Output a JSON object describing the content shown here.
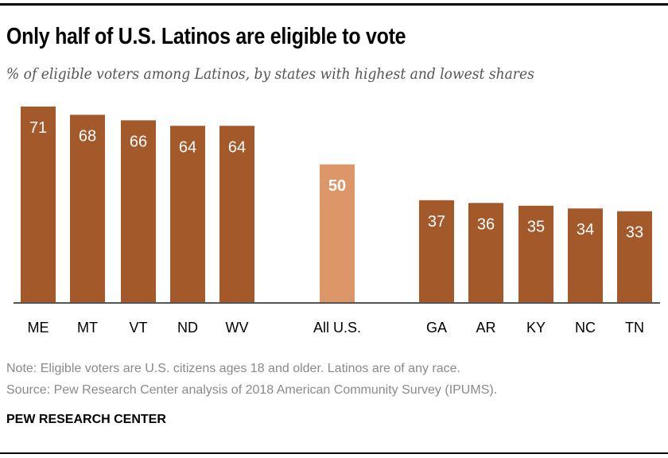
{
  "title": "Only half of U.S. Latinos are eligible to vote",
  "subtitle": "% of eligible voters among Latinos, by states with highest and lowest shares",
  "note": "Note: Eligible voters are U.S. citizens ages 18 and older. Latinos are of any race.",
  "source": "Source: Pew Research Center analysis of 2018 American Community Survey (IPUMS).",
  "brand": "PEW RESEARCH CENTER",
  "colors": {
    "state_bar": "#a3592a",
    "national_bar": "#dc9668",
    "label": "#ffffff",
    "axis": "#555555"
  },
  "chart_data": {
    "type": "bar",
    "categories": [
      "ME",
      "MT",
      "VT",
      "ND",
      "WV",
      "All U.S.",
      "GA",
      "AR",
      "KY",
      "NC",
      "TN"
    ],
    "values": [
      71,
      68,
      66,
      64,
      64,
      50,
      37,
      36,
      35,
      34,
      33
    ],
    "highlight": [
      "All U.S."
    ],
    "ylim": [
      0,
      75
    ],
    "grid": false,
    "data_labels": true
  }
}
